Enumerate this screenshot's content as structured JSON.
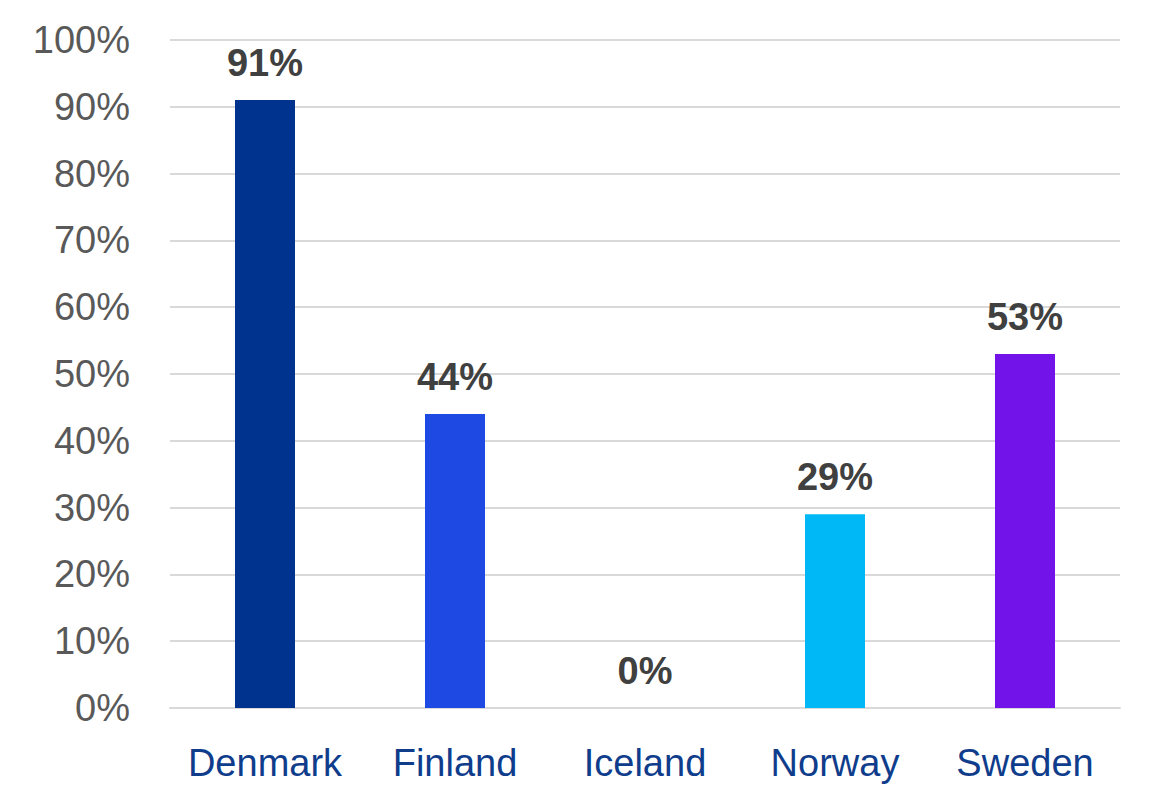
{
  "chart_data": {
    "type": "bar",
    "categories": [
      "Denmark",
      "Finland",
      "Iceland",
      "Norway",
      "Sweden"
    ],
    "values": [
      91,
      44,
      0,
      29,
      53
    ],
    "value_labels": [
      "91%",
      "44%",
      "0%",
      "29%",
      "53%"
    ],
    "colors": [
      "#00338D",
      "#1E49E2",
      "#0C7BDC",
      "#00B8F5",
      "#7213EA"
    ],
    "ylim": [
      0,
      100
    ],
    "yticks": [
      {
        "value": 0,
        "label": "0%"
      },
      {
        "value": 10,
        "label": "10%"
      },
      {
        "value": 20,
        "label": "20%"
      },
      {
        "value": 30,
        "label": "30%"
      },
      {
        "value": 40,
        "label": "40%"
      },
      {
        "value": 50,
        "label": "50%"
      },
      {
        "value": 60,
        "label": "60%"
      },
      {
        "value": 70,
        "label": "70%"
      },
      {
        "value": 80,
        "label": "80%"
      },
      {
        "value": 90,
        "label": "90%"
      },
      {
        "value": 100,
        "label": "100%"
      }
    ],
    "grid": true,
    "data_labels": true
  }
}
